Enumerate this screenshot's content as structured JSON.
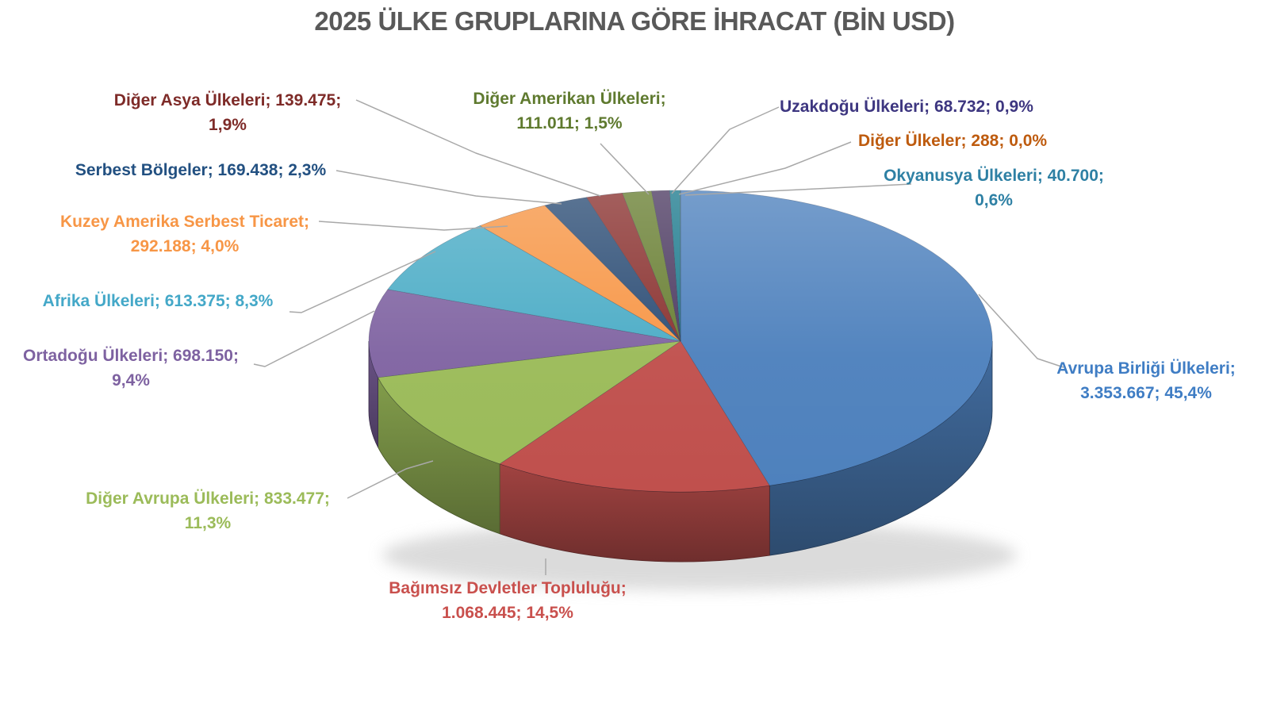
{
  "title": "2025 ÜLKE GRUPLARINA GÖRE İHRACAT (BİN USD)",
  "title_color": "#595959",
  "background": "#FFFFFF",
  "leader_line_color": "#A8A8A8",
  "chart_data": {
    "type": "pie",
    "style": "3d-pie",
    "unit": "BİN USD",
    "year": "2025",
    "legend_position": "none",
    "data_labels": "outside-with-leader-lines",
    "label_format": "name; value; percent",
    "slices": [
      {
        "id": "avrupa-birligi",
        "label": "Avrupa Birliği Ülkeleri",
        "value": "3.353.667",
        "value_num": 3353667,
        "pct": "45,4%",
        "pct_num": 45.4,
        "color": "#4E81BD",
        "label_color": "#3F7DC4",
        "label_lines": [
          "Avrupa Birliği Ülkeleri;",
          "3.353.667; 45,4%"
        ]
      },
      {
        "id": "bagimsiz-devletler",
        "label": "Bağımsız Devletler Topluluğu",
        "value": "1.068.445",
        "value_num": 1068445,
        "pct": "14,5%",
        "pct_num": 14.5,
        "color": "#C0504D",
        "label_color": "#C9504D",
        "label_lines": [
          "Bağımsız Devletler Topluluğu;",
          "1.068.445; 14,5%"
        ]
      },
      {
        "id": "diger-avrupa",
        "label": "Diğer Avrupa Ülkeleri",
        "value": "833.477",
        "value_num": 833477,
        "pct": "11,3%",
        "pct_num": 11.3,
        "color": "#9BBB59",
        "label_color": "#9BBB59",
        "label_lines": [
          "Diğer Avrupa Ülkeleri; 833.477;",
          "11,3%"
        ]
      },
      {
        "id": "ortadogu",
        "label": "Ortadoğu Ülkeleri",
        "value": "698.150",
        "value_num": 698150,
        "pct": "9,4%",
        "pct_num": 9.4,
        "color": "#8064A2",
        "label_color": "#7E62A1",
        "label_lines": [
          "Ortadoğu Ülkeleri; 698.150;",
          "9,4%"
        ]
      },
      {
        "id": "afrika",
        "label": "Afrika Ülkeleri",
        "value": "613.375",
        "value_num": 613375,
        "pct": "8,3%",
        "pct_num": 8.3,
        "color": "#4BACC6",
        "label_color": "#44A8C8",
        "label_lines": [
          "Afrika Ülkeleri; 613.375; 8,3%"
        ]
      },
      {
        "id": "kuzey-amerika",
        "label": "Kuzey Amerika Serbest Ticaret",
        "value": "292.188",
        "value_num": 292188,
        "pct": "4,0%",
        "pct_num": 4.0,
        "color": "#F79646",
        "label_color": "#F79646",
        "label_lines": [
          "Kuzey Amerika Serbest Ticaret;",
          "292.188; 4,0%"
        ]
      },
      {
        "id": "serbest-bolgeler",
        "label": "Serbest Bölgeler",
        "value": "169.438",
        "value_num": 169438,
        "pct": "2,3%",
        "pct_num": 2.3,
        "color": "#2C4D75",
        "label_color": "#225081",
        "label_lines": [
          "Serbest Bölgeler; 169.438; 2,3%"
        ]
      },
      {
        "id": "diger-asya",
        "label": "Diğer Asya Ülkeleri",
        "value": "139.475",
        "value_num": 139475,
        "pct": "1,9%",
        "pct_num": 1.9,
        "color": "#8A3230",
        "label_color": "#7E2B28",
        "label_lines": [
          "Diğer Asya Ülkeleri; 139.475;",
          "1,9%"
        ]
      },
      {
        "id": "diger-amerikan",
        "label": "Diğer Amerikan Ülkeleri",
        "value": "111.011",
        "value_num": 111011,
        "pct": "1,5%",
        "pct_num": 1.5,
        "color": "#697F33",
        "label_color": "#5F7A2F",
        "label_lines": [
          "Diğer Amerikan Ülkeleri;",
          "111.011; 1,5%"
        ]
      },
      {
        "id": "uzakdogu",
        "label": "Uzakdoğu Ülkeleri",
        "value": "68.732",
        "value_num": 68732,
        "pct": "0,9%",
        "pct_num": 0.9,
        "color": "#4D3B62",
        "label_color": "#3D3680",
        "label_lines": [
          "Uzakdoğu Ülkeleri; 68.732; 0,9%"
        ]
      },
      {
        "id": "okyanusya",
        "label": "Okyanusya Ülkeleri",
        "value": "40.700",
        "value_num": 40700,
        "pct": "0,6%",
        "pct_num": 0.6,
        "color": "#1E7B8E",
        "label_color": "#2E80A4",
        "label_lines": [
          "Okyanusya Ülkeleri; 40.700;",
          "0,6%"
        ]
      },
      {
        "id": "diger-ulkeler",
        "label": "Diğer Ülkeler",
        "value": "288",
        "value_num": 288,
        "pct": "0,0%",
        "pct_num": 0.0,
        "color": "#B65708",
        "label_color": "#BE5B0E",
        "label_lines": [
          "Diğer Ülkeler; 288; 0,0%"
        ]
      }
    ]
  }
}
